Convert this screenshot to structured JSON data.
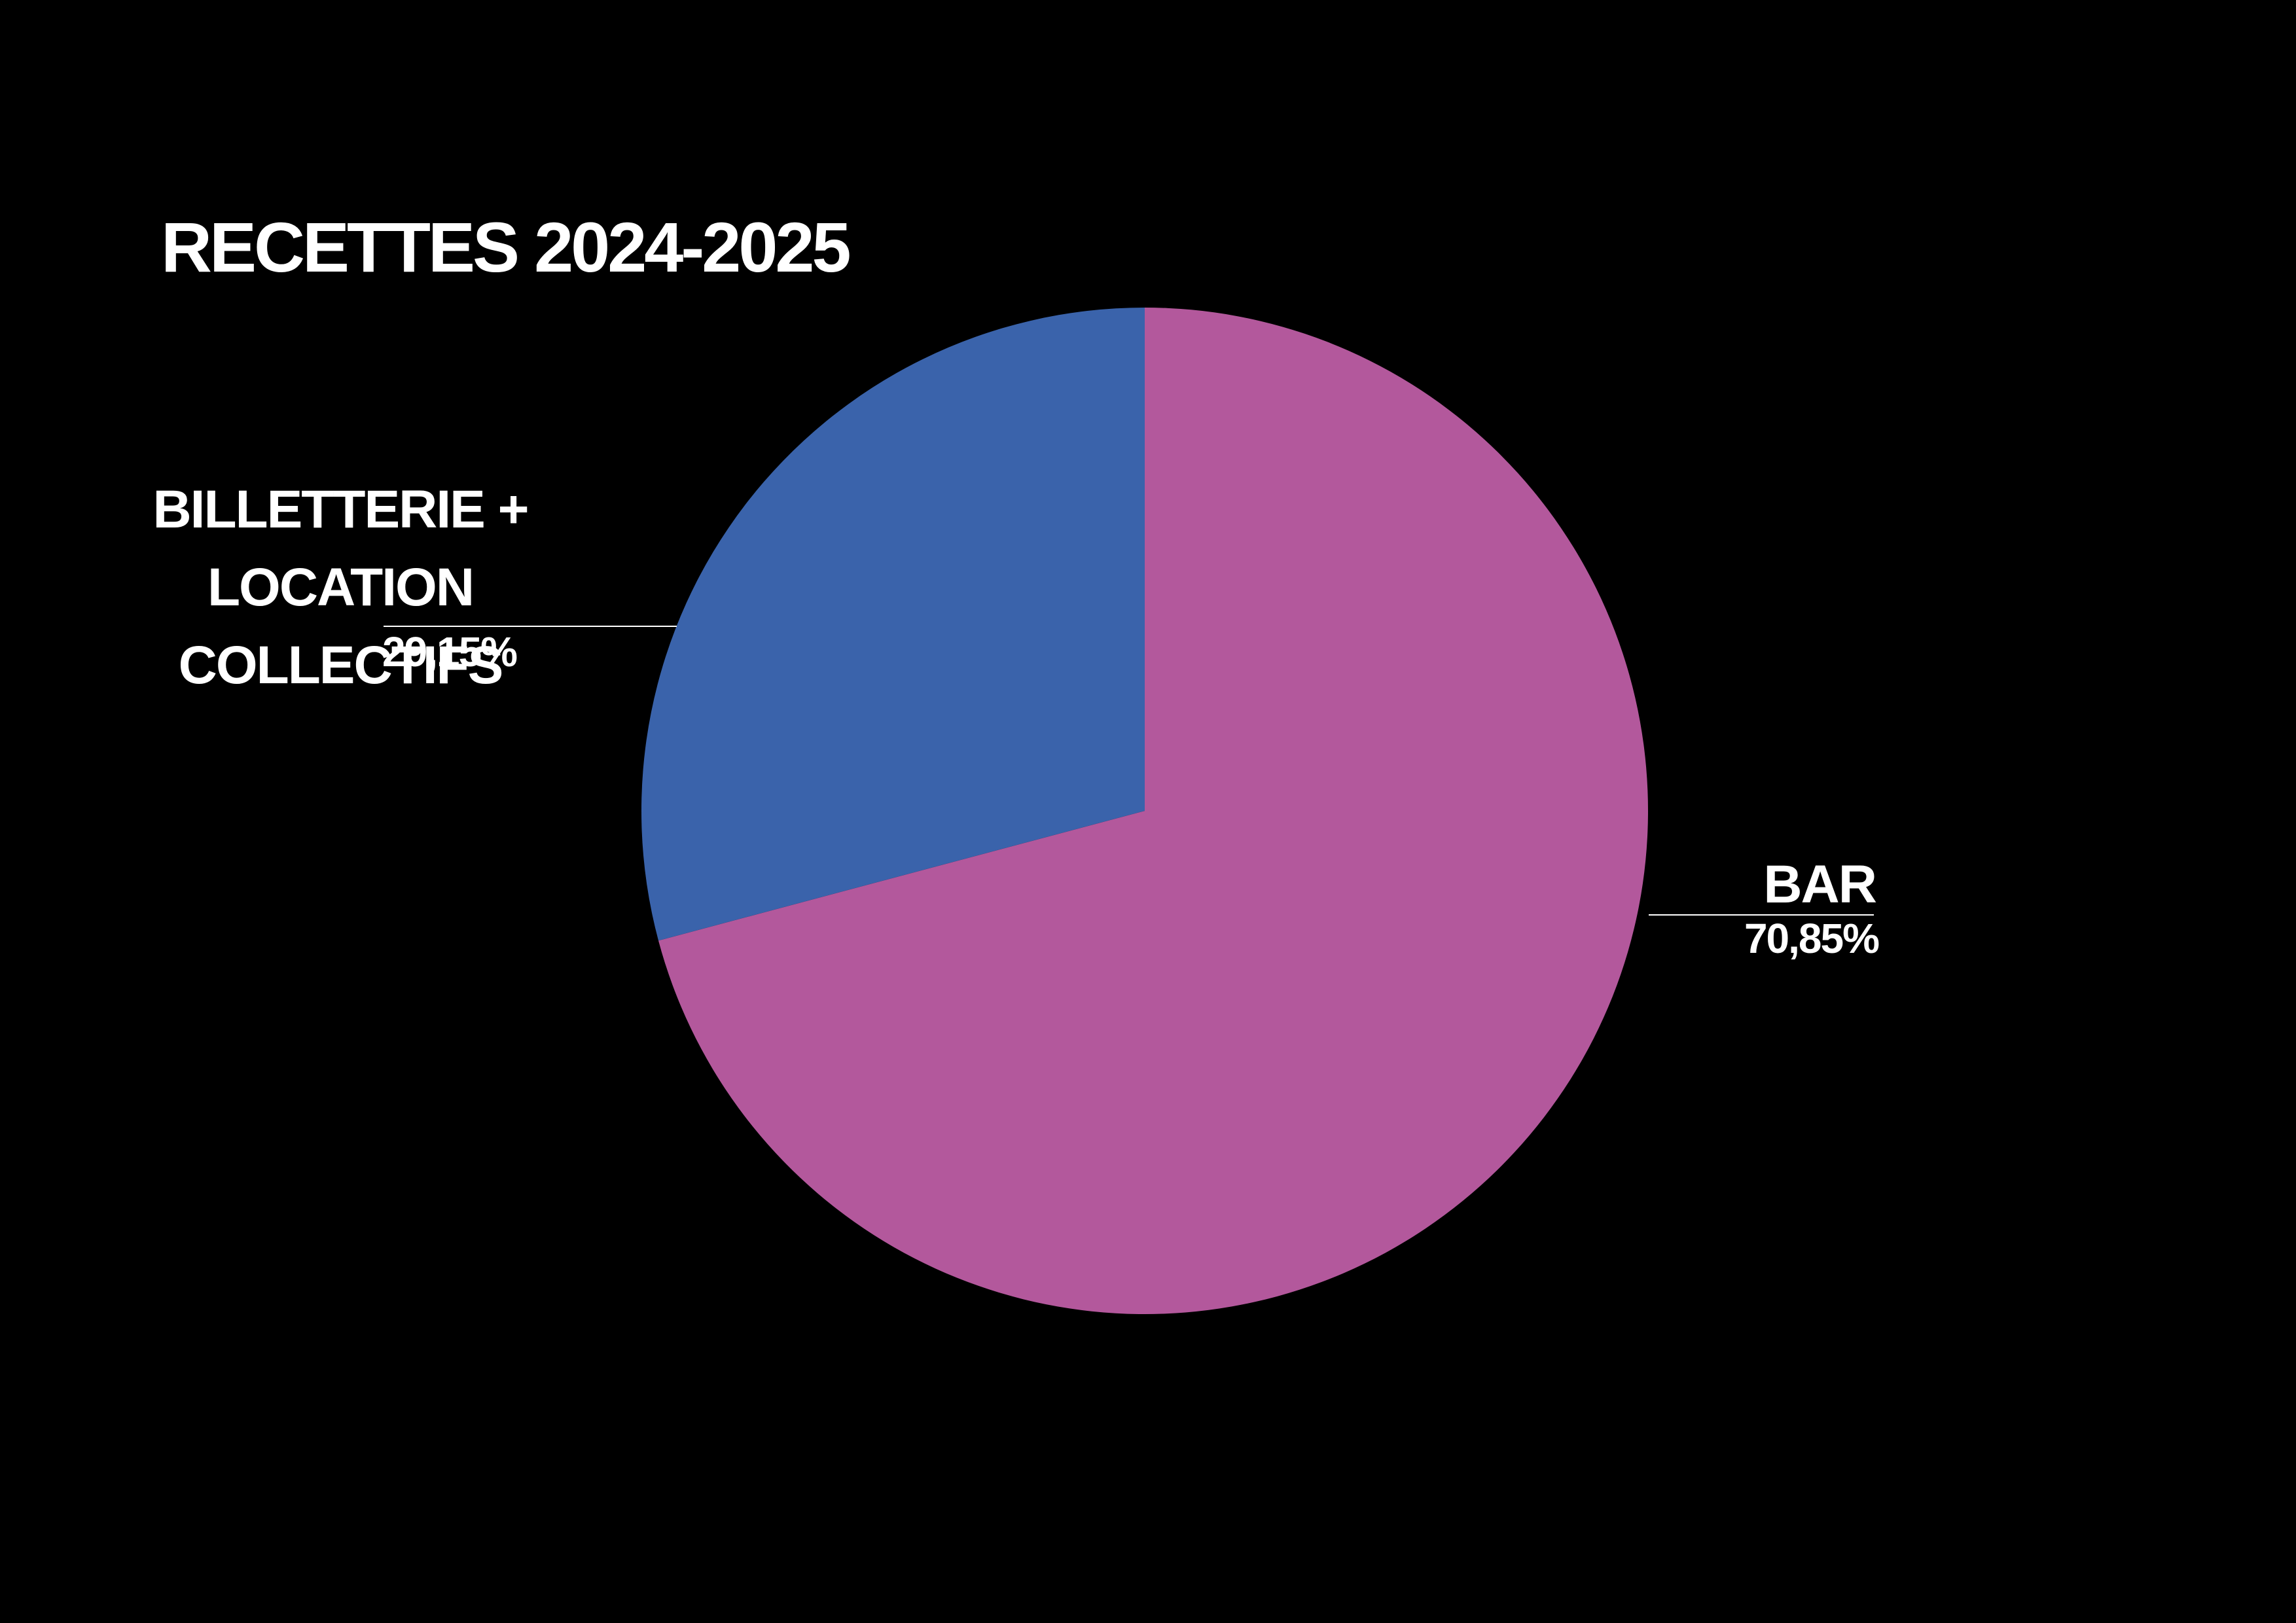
{
  "chart_data": {
    "type": "pie",
    "title": "RECETTES 2024-2025",
    "categories": [
      "BAR",
      "BILLETTERIE +\nLOCATION COLLECTIFS"
    ],
    "values": [
      70.85,
      29.15
    ],
    "value_labels": [
      "70,85%",
      "29,15%"
    ],
    "colors": [
      "#b3589c",
      "#3a63ab"
    ]
  }
}
